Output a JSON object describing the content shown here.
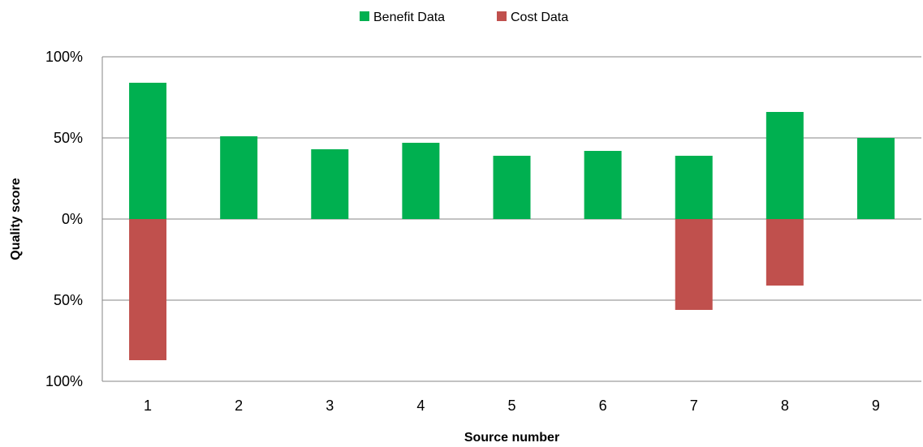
{
  "chart_data": {
    "type": "bar",
    "stacked_diverging": true,
    "categories": [
      "1",
      "2",
      "3",
      "4",
      "5",
      "6",
      "7",
      "8",
      "9"
    ],
    "series": [
      {
        "name": "Benefit Data",
        "color": "#00b050",
        "values": [
          84,
          51,
          43,
          47,
          39,
          42,
          39,
          66,
          50
        ]
      },
      {
        "name": "Cost Data",
        "color": "#c0504d",
        "values": [
          -87,
          0,
          0,
          0,
          0,
          0,
          -56,
          -41,
          0
        ]
      }
    ],
    "title": "",
    "xlabel": "Source number",
    "ylabel": "Quality score",
    "ylim": [
      -100,
      100
    ],
    "yticks": [
      100,
      50,
      0,
      -50,
      -100
    ],
    "ytick_labels": [
      "100%",
      "50%",
      "0%",
      "50%",
      "100%"
    ],
    "grid": true,
    "legend": "top-center"
  }
}
